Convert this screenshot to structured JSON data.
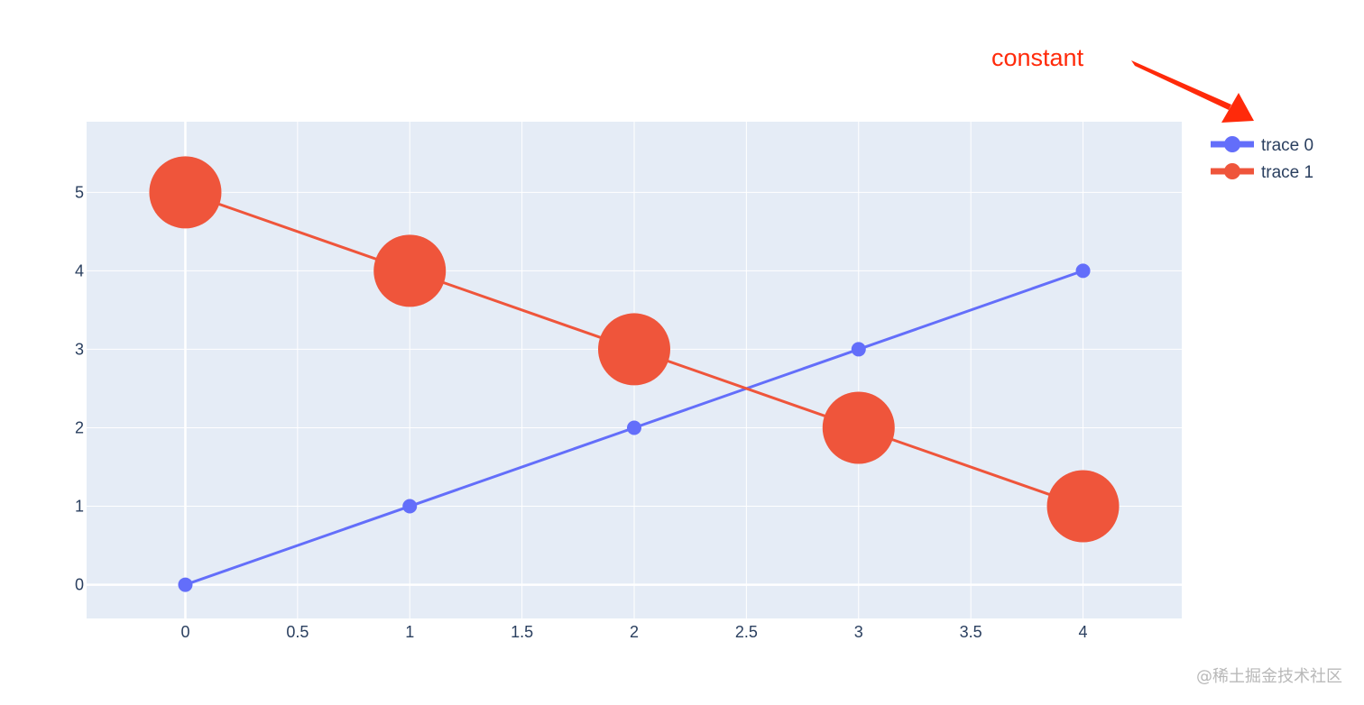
{
  "chart_data": {
    "type": "line",
    "title": "",
    "xlabel": "",
    "ylabel": "",
    "xlim": [
      -0.44,
      4.44
    ],
    "ylim": [
      -0.43,
      5.9
    ],
    "x_ticks": [
      0,
      0.5,
      1,
      1.5,
      2,
      2.5,
      3,
      3.5,
      4
    ],
    "x_tick_labels": [
      "0",
      "0.5",
      "1",
      "1.5",
      "2",
      "2.5",
      "3",
      "3.5",
      "4"
    ],
    "y_ticks": [
      0,
      1,
      2,
      3,
      4,
      5
    ],
    "y_tick_labels": [
      "0",
      "1",
      "2",
      "3",
      "4",
      "5"
    ],
    "grid": true,
    "legend_position": "top-right",
    "series": [
      {
        "name": "trace 0",
        "color": "#636efa",
        "marker": "small-circle",
        "x": [
          0,
          1,
          2,
          3,
          4
        ],
        "y": [
          0,
          1,
          2,
          3,
          4
        ]
      },
      {
        "name": "trace 1",
        "color": "#ef553b",
        "marker": "large-circle",
        "x": [
          0,
          1,
          2,
          3,
          4
        ],
        "y": [
          5,
          4,
          3,
          2,
          1
        ]
      }
    ]
  },
  "annotation": {
    "text": "constant",
    "color": "#ff2a0a",
    "icon": "arrow-icon"
  },
  "watermark": {
    "text": "@稀土掘金技术社区"
  }
}
